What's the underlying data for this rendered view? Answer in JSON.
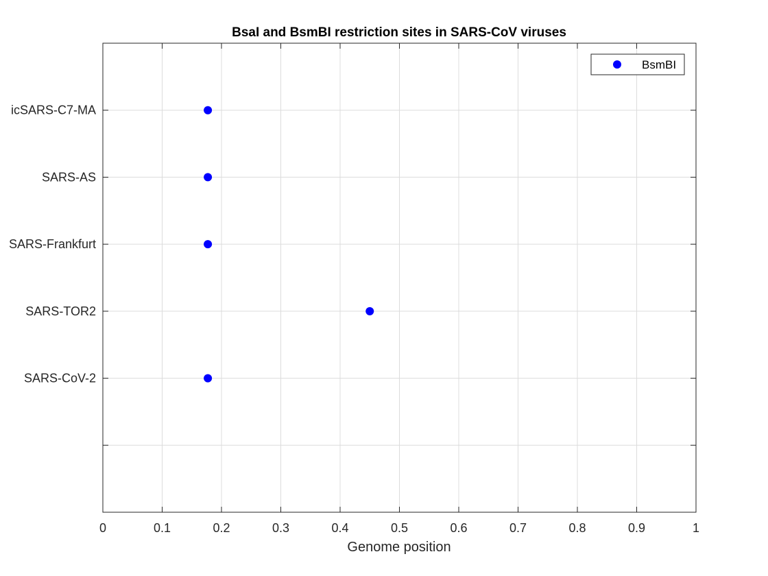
{
  "chart_data": {
    "type": "scatter",
    "title": "BsaI and BsmBI restriction sites in SARS-CoV viruses",
    "xlabel": "Genome position",
    "ylabel": "",
    "xlim": [
      0,
      1
    ],
    "x_ticks": [
      "0",
      "0.1",
      "0.2",
      "0.3",
      "0.4",
      "0.5",
      "0.6",
      "0.7",
      "0.8",
      "0.9",
      "1"
    ],
    "y_categories": [
      "icSARS-C7-MA",
      "SARS-AS",
      "SARS-Frankfurt",
      "SARS-TOR2",
      "SARS-CoV-2",
      ""
    ],
    "grid": true,
    "legend_position": "top-right",
    "series": [
      {
        "name": "BsmBI",
        "color": "#0000ff",
        "points": [
          {
            "x": 0.177,
            "y": "icSARS-C7-MA"
          },
          {
            "x": 0.177,
            "y": "SARS-AS"
          },
          {
            "x": 0.177,
            "y": "SARS-Frankfurt"
          },
          {
            "x": 0.45,
            "y": "SARS-TOR2"
          },
          {
            "x": 0.177,
            "y": "SARS-CoV-2"
          }
        ]
      }
    ]
  }
}
